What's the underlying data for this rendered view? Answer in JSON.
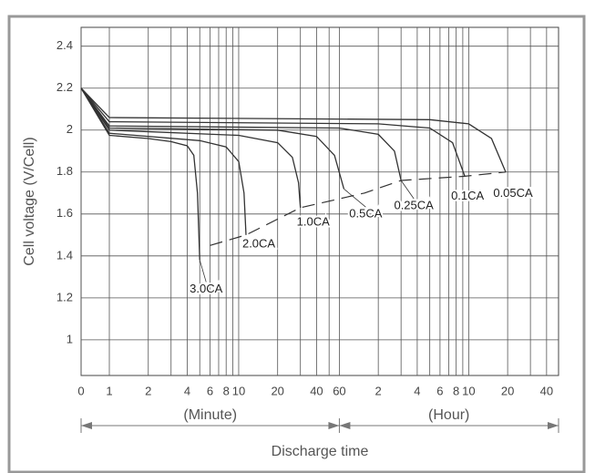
{
  "chart_data": {
    "type": "line",
    "ylabel": "Cell voltage (V/Cell)",
    "xlabel": "Discharge time",
    "x_unit_labels": [
      "(Minute)",
      "(Hour)"
    ],
    "xscale": "symlog",
    "xlim": [
      0,
      2970
    ],
    "ylim": [
      0.83,
      2.49
    ],
    "xticks": [
      0,
      1,
      2,
      4,
      6,
      8,
      10,
      20,
      40,
      60,
      {
        "value": 120,
        "label": "2"
      },
      {
        "value": 240,
        "label": "4"
      },
      {
        "value": 360,
        "label": "6"
      },
      {
        "value": 480,
        "label": "8"
      },
      {
        "value": 600,
        "label": "10"
      },
      {
        "value": 1200,
        "label": "20"
      },
      {
        "value": 2400,
        "label": "40"
      }
    ],
    "xminor": [
      3,
      5,
      7,
      9,
      30,
      50,
      180,
      300,
      420,
      540,
      1800
    ],
    "yticks": [
      1.0,
      1.2,
      1.4,
      1.6,
      1.8,
      2.0,
      2.2,
      2.4
    ],
    "grid": true,
    "series": [
      {
        "name": "3.0CA",
        "color": "#333333",
        "x": [
          0,
          1,
          2,
          3,
          4,
          4.5,
          4.8,
          5.0
        ],
        "values": [
          2.2,
          1.975,
          1.96,
          1.945,
          1.925,
          1.88,
          1.7,
          1.38
        ]
      },
      {
        "name": "2.0CA",
        "color": "#333333",
        "x": [
          0,
          1,
          5,
          8,
          10,
          11,
          11.4
        ],
        "values": [
          2.2,
          1.985,
          1.95,
          1.92,
          1.85,
          1.7,
          1.5
        ]
      },
      {
        "name": "1.0CA",
        "color": "#333333",
        "x": [
          0,
          1,
          10,
          20,
          26,
          29,
          30
        ],
        "values": [
          2.2,
          2.0,
          1.975,
          1.94,
          1.87,
          1.75,
          1.63
        ]
      },
      {
        "name": "0.5CA",
        "color": "#333333",
        "x": [
          0,
          1,
          20,
          40,
          55,
          65
        ],
        "values": [
          2.2,
          2.01,
          2.0,
          1.97,
          1.88,
          1.72
        ]
      },
      {
        "name": "0.25CA",
        "color": "#333333",
        "x": [
          0,
          1,
          60,
          120,
          160,
          180
        ],
        "values": [
          2.2,
          2.02,
          2.01,
          1.98,
          1.9,
          1.76
        ]
      },
      {
        "name": "0.1CA",
        "color": "#333333",
        "x": [
          0,
          1,
          120,
          300,
          450,
          560
        ],
        "values": [
          2.2,
          2.04,
          2.03,
          2.01,
          1.94,
          1.78
        ]
      },
      {
        "name": "0.05CA",
        "color": "#333333",
        "x": [
          0,
          1,
          300,
          600,
          900,
          1160
        ],
        "values": [
          2.2,
          2.06,
          2.05,
          2.03,
          1.96,
          1.8
        ]
      }
    ],
    "cutoff_line": {
      "x": [
        6,
        11.4,
        30,
        94,
        180,
        560,
        1160
      ],
      "values": [
        1.45,
        1.5,
        1.63,
        1.7,
        1.76,
        1.78,
        1.8
      ]
    }
  }
}
